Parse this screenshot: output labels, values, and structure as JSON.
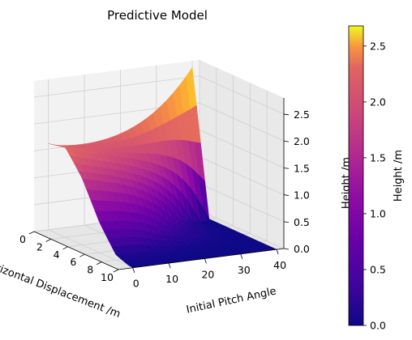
{
  "chart_data": {
    "type": "surface",
    "title": "Predictive Model",
    "xlabel": "Horizontal Displacement /m",
    "ylabel": "Initial Pitch Angle",
    "zlabel": "Height /m",
    "x_ticks": [
      "0",
      "2",
      "4",
      "6",
      "8",
      "10"
    ],
    "y_ticks": [
      "0",
      "10",
      "20",
      "30",
      "40"
    ],
    "z_ticks": [
      "0.0",
      "0.5",
      "1.0",
      "1.5",
      "2.0",
      "2.5"
    ],
    "xlim": [
      0,
      10
    ],
    "ylim": [
      -4,
      42
    ],
    "zlim": [
      0,
      2.8
    ],
    "colormap": "plasma",
    "colorbar": {
      "label": "Height /m",
      "ticks": [
        "0.0",
        "0.5",
        "1.0",
        "1.5",
        "2.0",
        "2.5"
      ],
      "range": [
        0,
        2.68
      ]
    },
    "surface_profile": {
      "x_edge_at_pitch_0": [
        {
          "x": 0,
          "z": 1.6
        },
        {
          "x": 2,
          "z": 1.62
        },
        {
          "x": 4,
          "z": 1.2
        },
        {
          "x": 6,
          "z": 0.6
        },
        {
          "x": 8,
          "z": 0.15
        },
        {
          "x": 10,
          "z": 0.0
        }
      ],
      "peak": {
        "x": 0,
        "y": 40,
        "z": 2.68
      }
    },
    "grid": true
  }
}
